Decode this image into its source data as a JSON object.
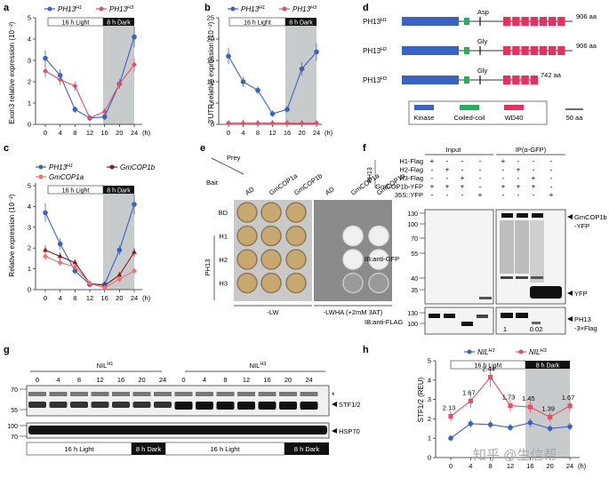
{
  "colors": {
    "blue": "#3a62c4",
    "red": "#e0506a",
    "darkred": "#8b1a1a",
    "salmon": "#f07070",
    "bar_blue": "#3a62c4",
    "bar_green": "#20b060",
    "bar_red": "#e83060",
    "dark_shade": "#c8cbcc"
  },
  "days": [
    "0",
    "4",
    "8",
    "12",
    "16",
    "20",
    "24"
  ],
  "hour_unit": "(h)",
  "light_label": "16 h Light",
  "dark_label": "8 h Dark",
  "panel_a": {
    "letter": "a",
    "ylabel": "Exon3 relative expression (10⁻²)",
    "yticks": [
      "0",
      "1",
      "2",
      "3",
      "4",
      "5"
    ],
    "legend": [
      {
        "base": "PH13",
        "sup": "H1"
      },
      {
        "base": "PH13",
        "sup": "H3"
      }
    ],
    "chart_data": {
      "type": "line",
      "x": [
        0,
        4,
        8,
        12,
        16,
        20,
        24
      ],
      "ylim": [
        0,
        5
      ],
      "series": [
        {
          "name": "PH13 H1",
          "values": [
            3.1,
            2.3,
            0.7,
            0.3,
            0.35,
            1.9,
            4.1
          ]
        },
        {
          "name": "PH13 H3",
          "values": [
            2.5,
            2.1,
            1.8,
            0.3,
            0.6,
            1.9,
            2.8
          ]
        }
      ]
    }
  },
  "panel_b": {
    "letter": "b",
    "ylabel": "3'UTR relative expression (10⁻²)",
    "yticks": [
      "0",
      "5",
      "10",
      "15",
      "20",
      "25"
    ],
    "legend": [
      {
        "base": "PH13",
        "sup": "H1"
      },
      {
        "base": "PH13",
        "sup": "H3"
      }
    ],
    "chart_data": {
      "type": "line",
      "x": [
        0,
        4,
        8,
        12,
        16,
        20,
        24
      ],
      "ylim": [
        0,
        25
      ],
      "series": [
        {
          "name": "PH13 H1",
          "values": [
            16,
            10,
            8,
            2.5,
            3.5,
            13,
            17
          ]
        },
        {
          "name": "PH13 H3",
          "values": [
            0.3,
            0.3,
            0.3,
            0.3,
            0.3,
            0.3,
            0.3
          ]
        }
      ]
    }
  },
  "panel_c": {
    "letter": "c",
    "ylabel": "Relative expression (10⁻²)",
    "yticks": [
      "0",
      "1",
      "2",
      "3",
      "4",
      "5"
    ],
    "legend": [
      {
        "base": "PH13",
        "sup": "H1"
      },
      {
        "base": "GmCOP1b",
        "sup": ""
      },
      {
        "base": "GmCOP1a",
        "sup": ""
      }
    ],
    "chart_data": {
      "type": "line",
      "x": [
        0,
        4,
        8,
        12,
        16,
        20,
        24
      ],
      "ylim": [
        0,
        5
      ],
      "series": [
        {
          "name": "PH13 H1",
          "values": [
            3.7,
            2.2,
            0.9,
            0.25,
            0.25,
            1.9,
            4.1
          ]
        },
        {
          "name": "GmCOP1b",
          "values": [
            1.9,
            1.6,
            1.3,
            0.3,
            0.2,
            0.7,
            1.8
          ]
        },
        {
          "name": "GmCOP1a",
          "values": [
            1.6,
            1.3,
            1.1,
            0.3,
            0.1,
            0.5,
            0.9
          ]
        }
      ]
    }
  },
  "panel_d": {
    "letter": "d",
    "rows": [
      {
        "name": "PH13",
        "sup": "H1",
        "residue": "Asp",
        "length": "906 aa"
      },
      {
        "name": "PH13",
        "sup": "H2",
        "residue": "Gly",
        "length": "906 aa"
      },
      {
        "name": "PH13",
        "sup": "H3",
        "residue": "Gly",
        "length": "742 aa"
      }
    ],
    "legend": [
      "Kinase",
      "Coiled-coil",
      "WD40"
    ],
    "scale": "50 aa"
  },
  "panel_e": {
    "letter": "e",
    "prey": "Prey",
    "bait": "Bait",
    "cols": [
      "AD",
      "GmCOP1a",
      "GmCOP1b"
    ],
    "rows": [
      "BD",
      "H1",
      "H2",
      "H3"
    ],
    "group_label": "PH13",
    "medium_left": "-LW",
    "medium_right": "-LWHA (+2mM 3AT)"
  },
  "panel_f": {
    "letter": "f",
    "input": "Input",
    "ip": "IP(α-GFP)",
    "group_label": "PH13",
    "row_labels": [
      "H1-Flag",
      "H2-Flag",
      "H3-Flag",
      "GmCOP1b-YFP",
      "35S::YFP"
    ],
    "signs": [
      [
        "+",
        "-",
        "-",
        "-",
        "+",
        "-",
        "-",
        "-"
      ],
      [
        "-",
        "+",
        "-",
        "-",
        "-",
        "+",
        "-",
        "-"
      ],
      [
        "-",
        "-",
        "+",
        "-",
        "-",
        "-",
        "+",
        "-"
      ],
      [
        "+",
        "+",
        "+",
        "-",
        "+",
        "+",
        "+",
        "-"
      ],
      [
        "-",
        "-",
        "-",
        "+",
        "-",
        "-",
        "-",
        "+"
      ]
    ],
    "mw_gfp": [
      "130",
      "100",
      "70",
      "55",
      "40",
      "35"
    ],
    "mw_flag": [
      "130",
      "100"
    ],
    "ib_gfp": "IB:anti-GFP",
    "ib_flag": "IB:anti-FLAG",
    "label_cop": "GmCOP1b\n-YFP",
    "label_cop1": "GmCOP1b",
    "label_cop2": "-YFP",
    "label_yfp": "YFP",
    "label_ph13a": "PH13",
    "label_ph13b": "-3×Flag",
    "ratio1": "1",
    "ratio2": "0.02"
  },
  "panel_g": {
    "letter": "g",
    "nil_h1": "NIL",
    "nil_h1_sup": "H1",
    "nil_h3": "NIL",
    "nil_h3_sup": "H3",
    "lanes": [
      "0",
      "4",
      "8",
      "12",
      "16",
      "20",
      "24",
      "0",
      "4",
      "8",
      "12",
      "16",
      "20",
      "24"
    ],
    "mw": [
      "70",
      "55",
      "100",
      "70"
    ],
    "label_stf": "STF1/2",
    "label_hsp": "HSP70",
    "star": "*"
  },
  "panel_h": {
    "letter": "h",
    "ylabel": "STF1/2 (REU)",
    "yticks": [
      "0",
      "1",
      "2",
      "3",
      "4",
      "5"
    ],
    "legend": [
      {
        "base": "NIL",
        "sup": "H1"
      },
      {
        "base": "NIL",
        "sup": "H3"
      }
    ],
    "ratio_labels": [
      "2.13",
      "1.67",
      "2.44",
      "1.73",
      "1.45",
      "1.39",
      "1.67"
    ],
    "chart_data": {
      "type": "line",
      "x": [
        0,
        4,
        8,
        12,
        16,
        20,
        24
      ],
      "ylim": [
        0,
        5
      ],
      "series": [
        {
          "name": "NIL H1",
          "values": [
            1.0,
            1.75,
            1.7,
            1.55,
            1.8,
            1.5,
            1.6
          ]
        },
        {
          "name": "NIL H3",
          "values": [
            2.13,
            2.92,
            4.15,
            2.68,
            2.61,
            2.09,
            2.67
          ]
        }
      ],
      "annotations": [
        "2.13",
        "1.67",
        "2.44",
        "1.73",
        "1.45",
        "1.39",
        "1.67"
      ]
    }
  },
  "watermark": "知乎 @生信帮"
}
